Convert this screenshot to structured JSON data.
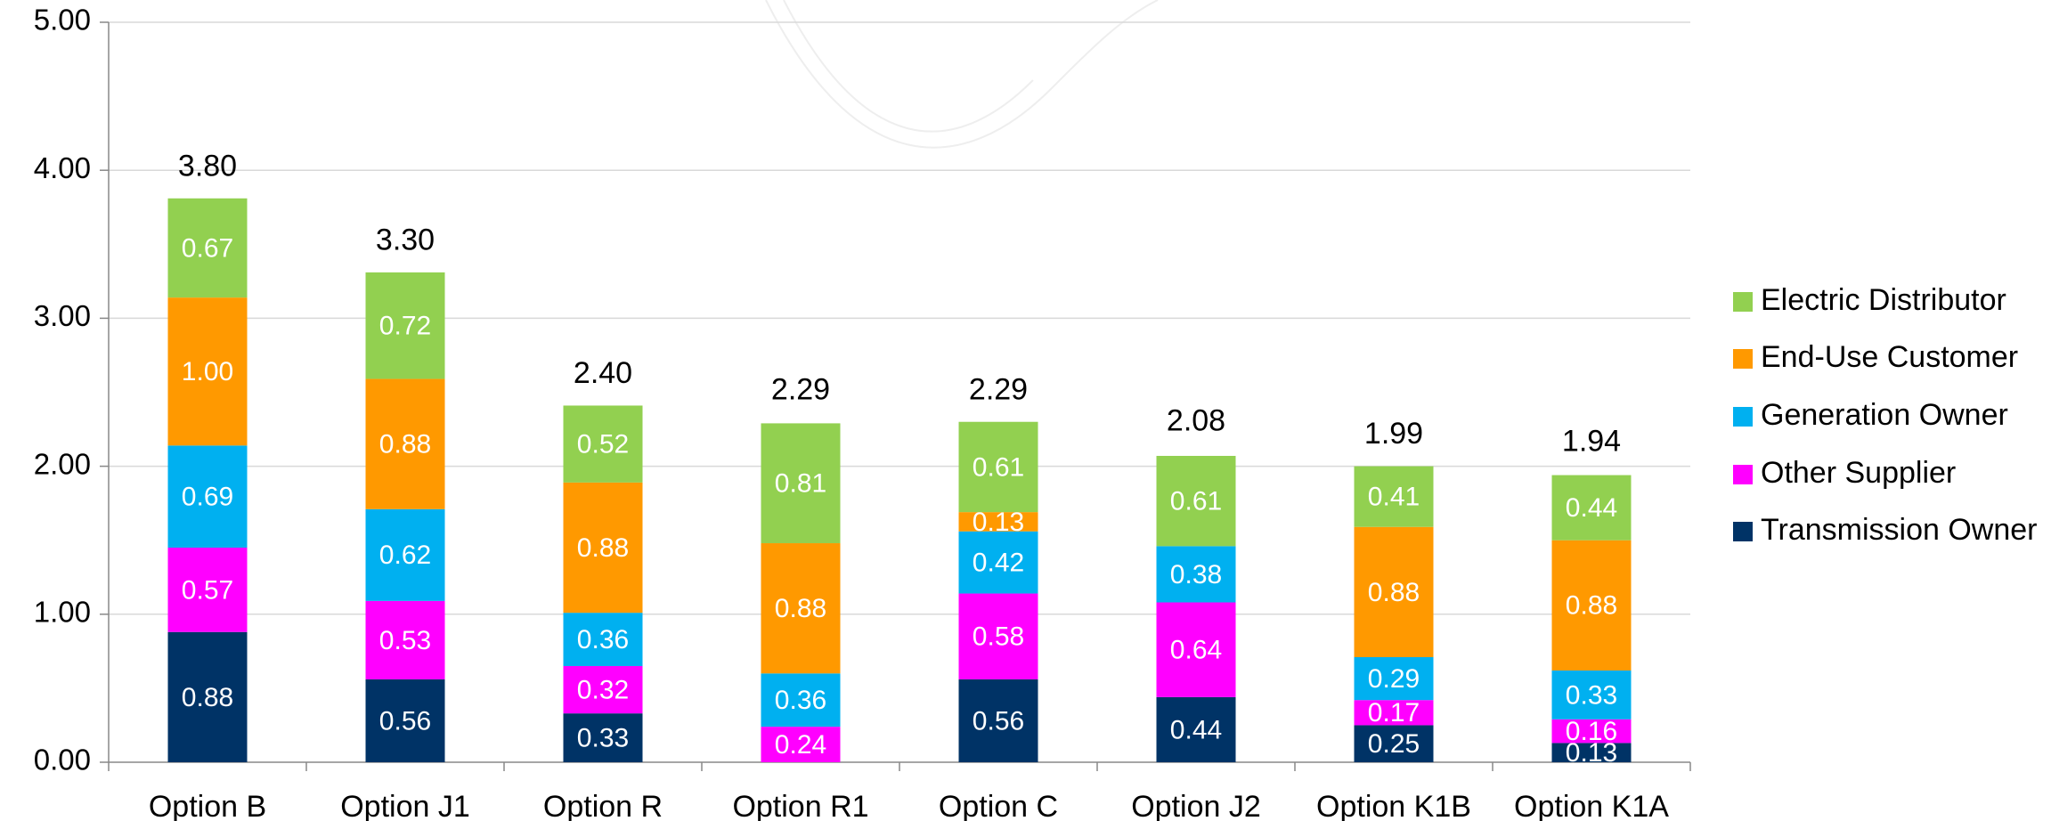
{
  "chart_data": {
    "type": "stacked_bar",
    "categories": [
      "Option B",
      "Option J1",
      "Option R",
      "Option R1",
      "Option C",
      "Option J2",
      "Option K1B",
      "Option K1A"
    ],
    "series": [
      {
        "name": "Transmission Owner",
        "color": "#003366",
        "values": [
          0.88,
          0.56,
          0.33,
          null,
          0.56,
          0.44,
          0.25,
          0.13
        ],
        "value_labels": [
          "0.88",
          "0.56",
          "0.33",
          null,
          "0.56",
          "0.44",
          "0.25",
          "0.13"
        ]
      },
      {
        "name": "Other Supplier",
        "color": "#ff00ff",
        "values": [
          0.57,
          0.53,
          0.32,
          0.24,
          0.58,
          0.64,
          0.17,
          0.16
        ],
        "value_labels": [
          "0.57",
          "0.53",
          "0.32",
          "0.24",
          "0.58",
          "0.64",
          "0.17",
          "0.16"
        ]
      },
      {
        "name": "Generation Owner",
        "color": "#00b0f0",
        "values": [
          0.69,
          0.62,
          0.36,
          0.36,
          0.42,
          0.38,
          0.29,
          0.33
        ],
        "value_labels": [
          "0.69",
          "0.62",
          "0.36",
          "0.36",
          "0.42",
          "0.38",
          "0.29",
          "0.33"
        ]
      },
      {
        "name": "End-Use Customer",
        "color": "#ff9900",
        "values": [
          1.0,
          0.88,
          0.88,
          0.88,
          0.13,
          null,
          0.88,
          0.88
        ],
        "value_labels": [
          "1.00",
          "0.88",
          "0.88",
          "0.88",
          "0.13",
          null,
          "0.88",
          "0.88"
        ]
      },
      {
        "name": "Electric Distributor",
        "color": "#92d050",
        "values": [
          0.67,
          0.72,
          0.52,
          0.81,
          0.61,
          0.61,
          0.41,
          0.44
        ],
        "value_labels": [
          "0.67",
          "0.72",
          "0.52",
          "0.81",
          "0.61",
          "0.61",
          "0.41",
          "0.44"
        ]
      }
    ],
    "totals": [
      3.8,
      3.3,
      2.4,
      2.29,
      2.29,
      2.08,
      1.99,
      1.94
    ],
    "total_labels": [
      "3.80",
      "3.30",
      "2.40",
      "2.29",
      "2.29",
      "2.08",
      "1.99",
      "1.94"
    ],
    "ylim": [
      0,
      5
    ],
    "yticks": [
      {
        "value": 0,
        "label": "0.00"
      },
      {
        "value": 1,
        "label": "1.00"
      },
      {
        "value": 2,
        "label": "2.00"
      },
      {
        "value": 3,
        "label": "3.00"
      },
      {
        "value": 4,
        "label": "4.00"
      },
      {
        "value": 5,
        "label": "5.00"
      }
    ],
    "grid": true,
    "legend": "right"
  }
}
